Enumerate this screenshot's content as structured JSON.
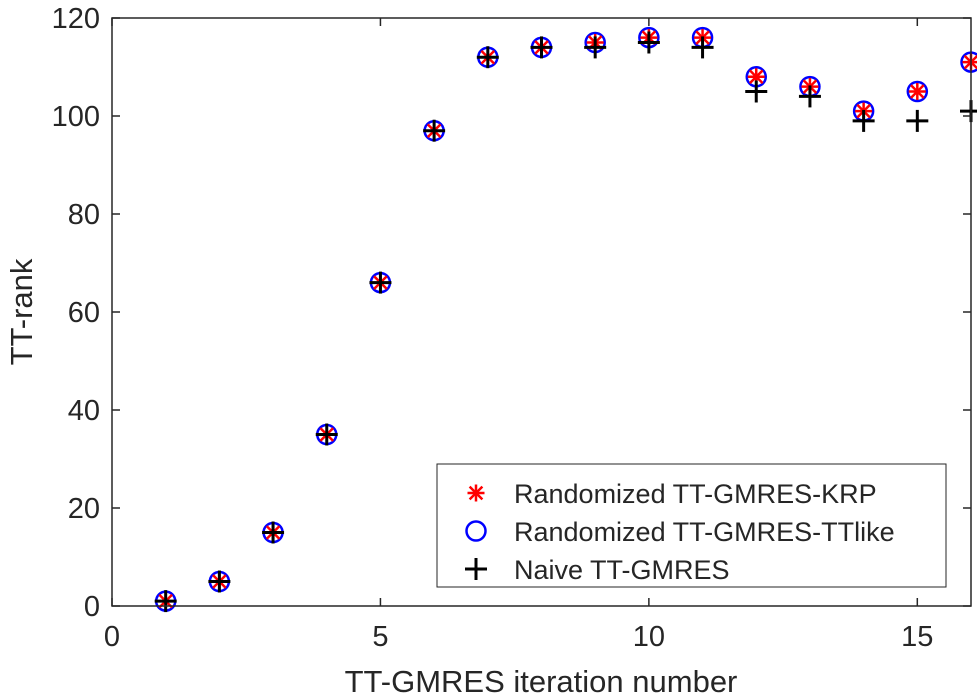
{
  "chart_data": {
    "type": "scatter",
    "title": "",
    "xlabel": "TT-GMRES iteration number",
    "ylabel": "TT-rank",
    "xlim": [
      0,
      16
    ],
    "ylim": [
      0,
      120
    ],
    "xticks": [
      0,
      5,
      10,
      15
    ],
    "yticks": [
      0,
      20,
      40,
      60,
      80,
      100,
      120
    ],
    "xtick_labels": [
      "0",
      "5",
      "10",
      "15"
    ],
    "ytick_labels": [
      "0",
      "20",
      "40",
      "60",
      "80",
      "100",
      "120"
    ],
    "grid": false,
    "legend_position": "bottom-right",
    "x": [
      1,
      2,
      3,
      4,
      5,
      6,
      7,
      8,
      9,
      10,
      11,
      12,
      13,
      14,
      15,
      16
    ],
    "series": [
      {
        "name": "Randomized TT-GMRES-KRP",
        "marker": "asterisk",
        "color": "#ff0000",
        "values": [
          1,
          5,
          15,
          35,
          66,
          97,
          112,
          114,
          115,
          116,
          116,
          108,
          106,
          101,
          105,
          111
        ]
      },
      {
        "name": "Randomized TT-GMRES-TTlike",
        "marker": "circle",
        "color": "#0000ff",
        "values": [
          1,
          5,
          15,
          35,
          66,
          97,
          112,
          114,
          115,
          116,
          116,
          108,
          106,
          101,
          105,
          111
        ]
      },
      {
        "name": "Naive TT-GMRES",
        "marker": "plus",
        "color": "#000000",
        "values": [
          1,
          5,
          15,
          35,
          66,
          97,
          112,
          114,
          114,
          115,
          114,
          105,
          104,
          99,
          99,
          101
        ]
      }
    ]
  }
}
